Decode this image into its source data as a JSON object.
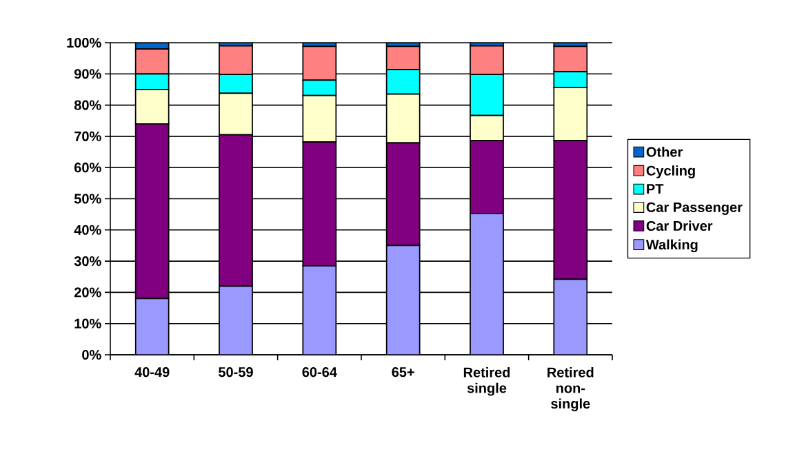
{
  "chart_data": {
    "type": "bar",
    "stacked": true,
    "legend": "right",
    "grid": "y",
    "categories": [
      "40-49",
      "50-59",
      "60-64",
      "65+",
      "Retired single",
      "Retired non-single"
    ],
    "ylim": [
      0,
      100
    ],
    "yticks": [
      {
        "value": 0,
        "label": "0%"
      },
      {
        "value": 10,
        "label": "10%"
      },
      {
        "value": 20,
        "label": "20%"
      },
      {
        "value": 30,
        "label": "30%"
      },
      {
        "value": 40,
        "label": "40%"
      },
      {
        "value": 50,
        "label": "50%"
      },
      {
        "value": 60,
        "label": "60%"
      },
      {
        "value": 70,
        "label": "70%"
      },
      {
        "value": 80,
        "label": "80%"
      },
      {
        "value": 90,
        "label": "90%"
      },
      {
        "value": 100,
        "label": "100%"
      }
    ],
    "series": [
      {
        "name": "Walking",
        "color": "#9999ff",
        "values": [
          18,
          22,
          28.5,
          35,
          45.3,
          24.2
        ]
      },
      {
        "name": "Car Driver",
        "color": "#800080",
        "values": [
          56,
          48.5,
          39.7,
          32.9,
          23.3,
          44.4
        ]
      },
      {
        "name": "Car Passenger",
        "color": "#ffffcc",
        "values": [
          11,
          13.3,
          14.9,
          15.6,
          8.1,
          17.1
        ]
      },
      {
        "name": "PT",
        "color": "#00ffff",
        "values": [
          5,
          6,
          4.9,
          7.9,
          13.1,
          5
        ]
      },
      {
        "name": "Cycling",
        "color": "#ff8080",
        "values": [
          8,
          9.2,
          10.8,
          7.4,
          9.2,
          8.1
        ]
      },
      {
        "name": "Other",
        "color": "#0066cc",
        "values": [
          2,
          1,
          1.2,
          1.2,
          1,
          1.2
        ]
      }
    ]
  }
}
